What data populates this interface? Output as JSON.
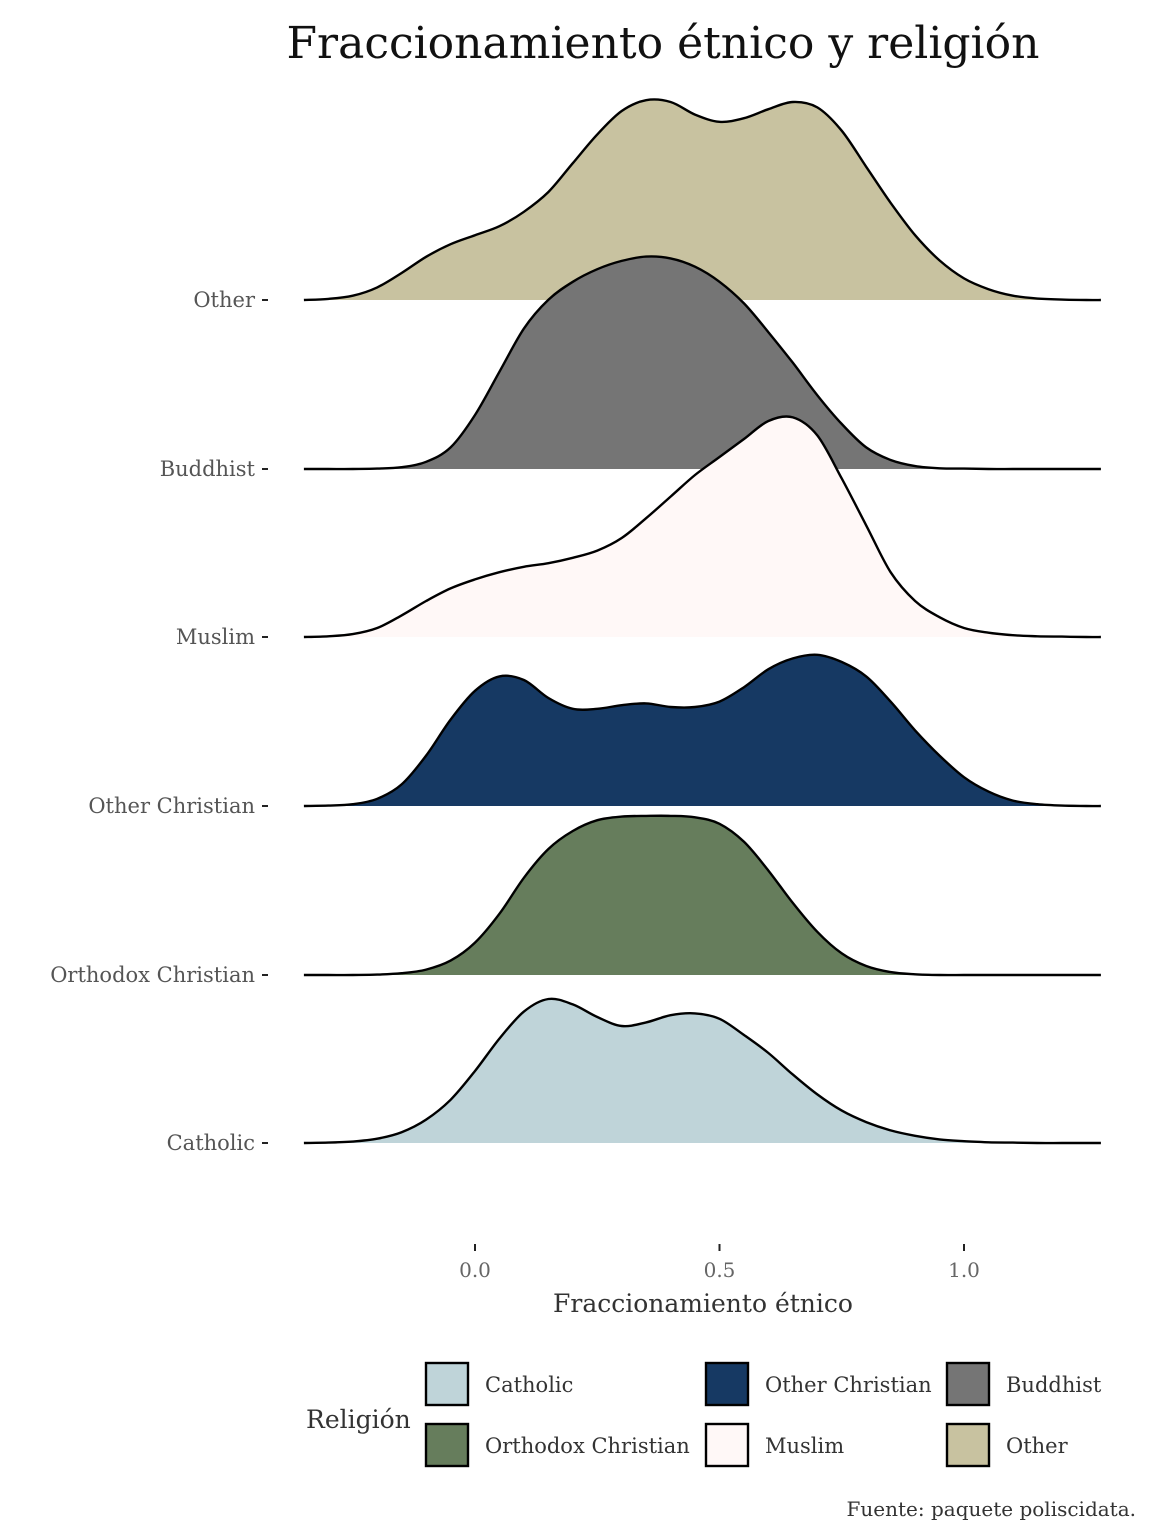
{
  "chart_data": {
    "type": "area",
    "subtype": "ridgeline",
    "title": "Fraccionamiento étnico y religión",
    "xlabel": "Fraccionamiento étnico",
    "ylabel": "",
    "xlim": [
      -0.35,
      1.28
    ],
    "x_ticks": [
      "0.0",
      "0.5",
      "1.0"
    ],
    "grid": false,
    "legend_title": "Religión",
    "legend_position": "bottom",
    "caption": "Fuente: paquete poliscidata.",
    "x": [
      -0.35,
      -0.3,
      -0.25,
      -0.2,
      -0.15,
      -0.1,
      -0.05,
      0.0,
      0.05,
      0.1,
      0.15,
      0.2,
      0.25,
      0.3,
      0.35,
      0.4,
      0.45,
      0.5,
      0.55,
      0.6,
      0.65,
      0.7,
      0.75,
      0.8,
      0.85,
      0.9,
      0.95,
      1.0,
      1.05,
      1.1,
      1.15,
      1.2,
      1.25,
      1.28
    ],
    "series": [
      {
        "name": "Catholic",
        "color": "#bfd4d9",
        "density": [
          0.0,
          0.01,
          0.04,
          0.12,
          0.3,
          0.65,
          1.2,
          2.0,
          2.9,
          3.65,
          4.0,
          3.85,
          3.5,
          3.25,
          3.35,
          3.55,
          3.6,
          3.45,
          3.0,
          2.5,
          1.9,
          1.35,
          0.9,
          0.58,
          0.35,
          0.2,
          0.1,
          0.05,
          0.02,
          0.01,
          0.0,
          0.0,
          0.0,
          0.0
        ]
      },
      {
        "name": "Orthodox Christian",
        "color": "#667d5c",
        "density": [
          0.0,
          0.0,
          0.0,
          0.01,
          0.05,
          0.15,
          0.4,
          0.9,
          1.7,
          2.7,
          3.5,
          4.0,
          4.3,
          4.4,
          4.42,
          4.42,
          4.38,
          4.2,
          3.7,
          2.9,
          2.0,
          1.2,
          0.6,
          0.25,
          0.08,
          0.02,
          0.0,
          0.0,
          0.0,
          0.0,
          0.0,
          0.0,
          0.0,
          0.0
        ]
      },
      {
        "name": "Other Christian",
        "color": "#163963",
        "density": [
          0.0,
          0.01,
          0.05,
          0.2,
          0.6,
          1.4,
          2.4,
          3.2,
          3.6,
          3.5,
          3.0,
          2.7,
          2.7,
          2.8,
          2.85,
          2.75,
          2.75,
          2.9,
          3.3,
          3.8,
          4.1,
          4.2,
          4.0,
          3.6,
          2.9,
          2.1,
          1.4,
          0.8,
          0.4,
          0.15,
          0.05,
          0.01,
          0.0,
          0.0
        ]
      },
      {
        "name": "Muslim",
        "color": "#fff8f7",
        "density": [
          0.0,
          0.02,
          0.08,
          0.25,
          0.6,
          1.0,
          1.35,
          1.6,
          1.8,
          1.95,
          2.05,
          2.2,
          2.4,
          2.75,
          3.3,
          3.9,
          4.5,
          5.0,
          5.5,
          6.0,
          6.1,
          5.6,
          4.4,
          3.1,
          1.8,
          1.0,
          0.55,
          0.25,
          0.12,
          0.05,
          0.02,
          0.01,
          0.0,
          0.0
        ]
      },
      {
        "name": "Buddhist",
        "color": "#757575",
        "density": [
          0.0,
          0.0,
          0.0,
          0.01,
          0.05,
          0.2,
          0.6,
          1.5,
          2.7,
          3.9,
          4.7,
          5.2,
          5.55,
          5.78,
          5.9,
          5.85,
          5.62,
          5.2,
          4.6,
          3.8,
          2.95,
          2.05,
          1.25,
          0.6,
          0.25,
          0.08,
          0.02,
          0.01,
          0.0,
          0.0,
          0.0,
          0.0,
          0.0,
          0.0
        ]
      },
      {
        "name": "Other",
        "color": "#c8c2a0",
        "density": [
          0.0,
          0.03,
          0.12,
          0.35,
          0.75,
          1.2,
          1.55,
          1.8,
          2.05,
          2.45,
          3.0,
          3.8,
          4.6,
          5.25,
          5.55,
          5.5,
          5.15,
          4.95,
          5.05,
          5.3,
          5.5,
          5.35,
          4.7,
          3.7,
          2.7,
          1.8,
          1.1,
          0.6,
          0.3,
          0.12,
          0.04,
          0.01,
          0.0,
          0.0
        ]
      }
    ]
  },
  "legend_rows": [
    [
      {
        "name": "Catholic",
        "color": "#bfd4d9"
      },
      {
        "name": "Other Christian",
        "color": "#163963"
      },
      {
        "name": "Buddhist",
        "color": "#757575"
      }
    ],
    [
      {
        "name": "Orthodox Christian",
        "color": "#667d5c"
      },
      {
        "name": "Muslim",
        "color": "#fff8f7"
      },
      {
        "name": "Other",
        "color": "#c8c2a0"
      }
    ]
  ]
}
